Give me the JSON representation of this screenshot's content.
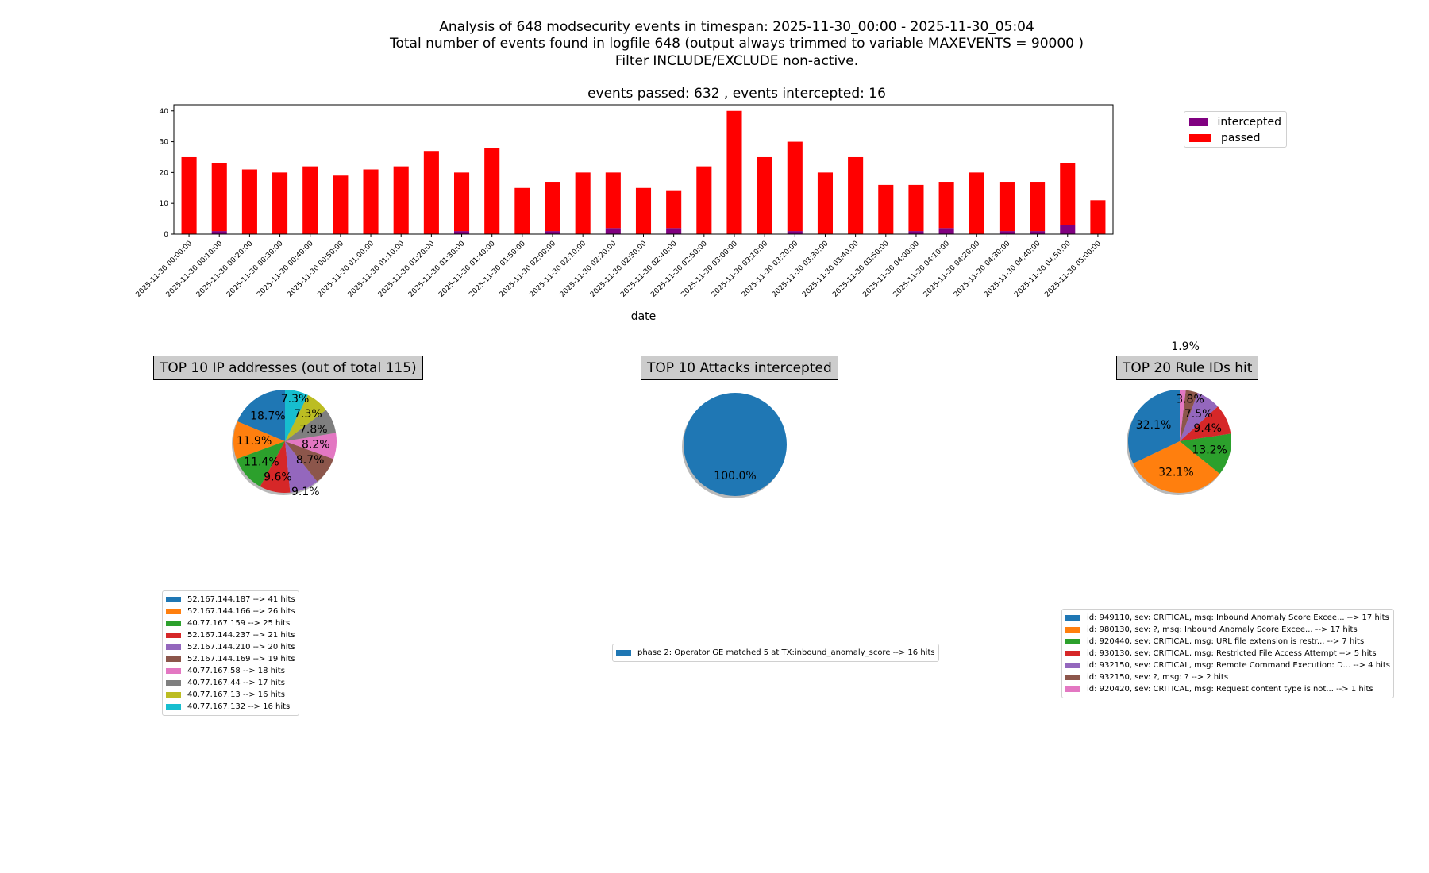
{
  "header": {
    "line1": "Analysis of 648 modsecurity events in timespan: 2025-11-30_00:00 - 2025-11-30_05:04",
    "line2": "Total number of events found in logfile 648 (output always trimmed to variable MAXEVENTS = 90000 )",
    "line3": "Filter INCLUDE/EXCLUDE non-active."
  },
  "chart_data": [
    {
      "type": "bar",
      "stacked": true,
      "title": "events passed: 632 , events intercepted: 16",
      "xlabel": "date",
      "ylabel": "",
      "ylim": [
        0,
        42
      ],
      "yticks": [
        0,
        10,
        20,
        30,
        40
      ],
      "legend_position": "top-right",
      "categories": [
        "2025-11-30 00:00:00",
        "2025-11-30 00:10:00",
        "2025-11-30 00:20:00",
        "2025-11-30 00:30:00",
        "2025-11-30 00:40:00",
        "2025-11-30 00:50:00",
        "2025-11-30 01:00:00",
        "2025-11-30 01:10:00",
        "2025-11-30 01:20:00",
        "2025-11-30 01:30:00",
        "2025-11-30 01:40:00",
        "2025-11-30 01:50:00",
        "2025-11-30 02:00:00",
        "2025-11-30 02:10:00",
        "2025-11-30 02:20:00",
        "2025-11-30 02:30:00",
        "2025-11-30 02:40:00",
        "2025-11-30 02:50:00",
        "2025-11-30 03:00:00",
        "2025-11-30 03:10:00",
        "2025-11-30 03:20:00",
        "2025-11-30 03:30:00",
        "2025-11-30 03:40:00",
        "2025-11-30 03:50:00",
        "2025-11-30 04:00:00",
        "2025-11-30 04:10:00",
        "2025-11-30 04:20:00",
        "2025-11-30 04:30:00",
        "2025-11-30 04:40:00",
        "2025-11-30 04:50:00",
        "2025-11-30 05:00:00"
      ],
      "series": [
        {
          "name": "intercepted",
          "color": "#800080",
          "values": [
            0,
            1,
            0,
            0,
            0,
            0,
            0,
            0,
            0,
            1,
            0,
            0,
            1,
            0,
            2,
            0,
            2,
            0,
            0,
            0,
            1,
            0,
            0,
            0,
            1,
            2,
            0,
            1,
            1,
            3,
            0
          ]
        },
        {
          "name": "passed",
          "color": "#ff0000",
          "values": [
            25,
            22,
            21,
            20,
            22,
            19,
            21,
            22,
            27,
            19,
            28,
            15,
            16,
            20,
            18,
            15,
            12,
            22,
            40,
            25,
            29,
            20,
            25,
            16,
            15,
            15,
            20,
            16,
            16,
            20,
            11
          ]
        }
      ]
    },
    {
      "type": "pie",
      "title": "TOP 10 IP addresses (out of total 115)",
      "labels": [
        "52.167.144.187 --> 41 hits",
        "52.167.144.166 --> 26 hits",
        "40.77.167.159 --> 25 hits",
        "52.167.144.237 --> 21 hits",
        "52.167.144.210 --> 20 hits",
        "52.167.144.169 --> 19 hits",
        "40.77.167.58 --> 18 hits",
        "40.77.167.44 --> 17 hits",
        "40.77.167.13 --> 16 hits",
        "40.77.167.132 --> 16 hits"
      ],
      "values": [
        41,
        26,
        25,
        21,
        20,
        19,
        18,
        17,
        16,
        16
      ],
      "pct_labels": [
        "18.7%",
        "11.9%",
        "11.4%",
        "9.6%",
        "9.1%",
        "8.7%",
        "8.2%",
        "7.8%",
        "7.3%",
        "7.3%"
      ],
      "colors": [
        "#1f77b4",
        "#ff7f0e",
        "#2ca02c",
        "#d62728",
        "#9467bd",
        "#8c564b",
        "#e377c2",
        "#7f7f7f",
        "#bcbd22",
        "#17becf"
      ]
    },
    {
      "type": "pie",
      "title": "TOP 10 Attacks intercepted",
      "labels": [
        "phase 2: Operator GE matched 5 at TX:inbound_anomaly_score --> 16 hits"
      ],
      "values": [
        16
      ],
      "pct_labels": [
        "100.0%"
      ],
      "colors": [
        "#1f77b4"
      ]
    },
    {
      "type": "pie",
      "title": "TOP 20 Rule IDs hit",
      "labels": [
        "id: 949110, sev: CRITICAL, msg: Inbound Anomaly Score Excee... --> 17 hits",
        "id: 980130, sev: ?, msg: Inbound Anomaly Score Excee... --> 17 hits",
        "id: 920440, sev: CRITICAL, msg: URL file extension is restr... --> 7 hits",
        "id: 930130, sev: CRITICAL, msg: Restricted File Access Attempt --> 5 hits",
        "id: 932150, sev: CRITICAL, msg: Remote Command Execution: D... --> 4 hits",
        "id: 932150, sev: ?, msg: ? --> 2 hits",
        "id: 920420, sev: CRITICAL, msg: Request content type is not... --> 1 hits"
      ],
      "values": [
        17,
        17,
        7,
        5,
        4,
        2,
        1
      ],
      "pct_labels": [
        "32.1%",
        "32.1%",
        "13.2%",
        "9.4%",
        "7.5%",
        "3.8%",
        "1.9%"
      ],
      "colors": [
        "#1f77b4",
        "#ff7f0e",
        "#2ca02c",
        "#d62728",
        "#9467bd",
        "#8c564b",
        "#e377c2"
      ]
    }
  ]
}
